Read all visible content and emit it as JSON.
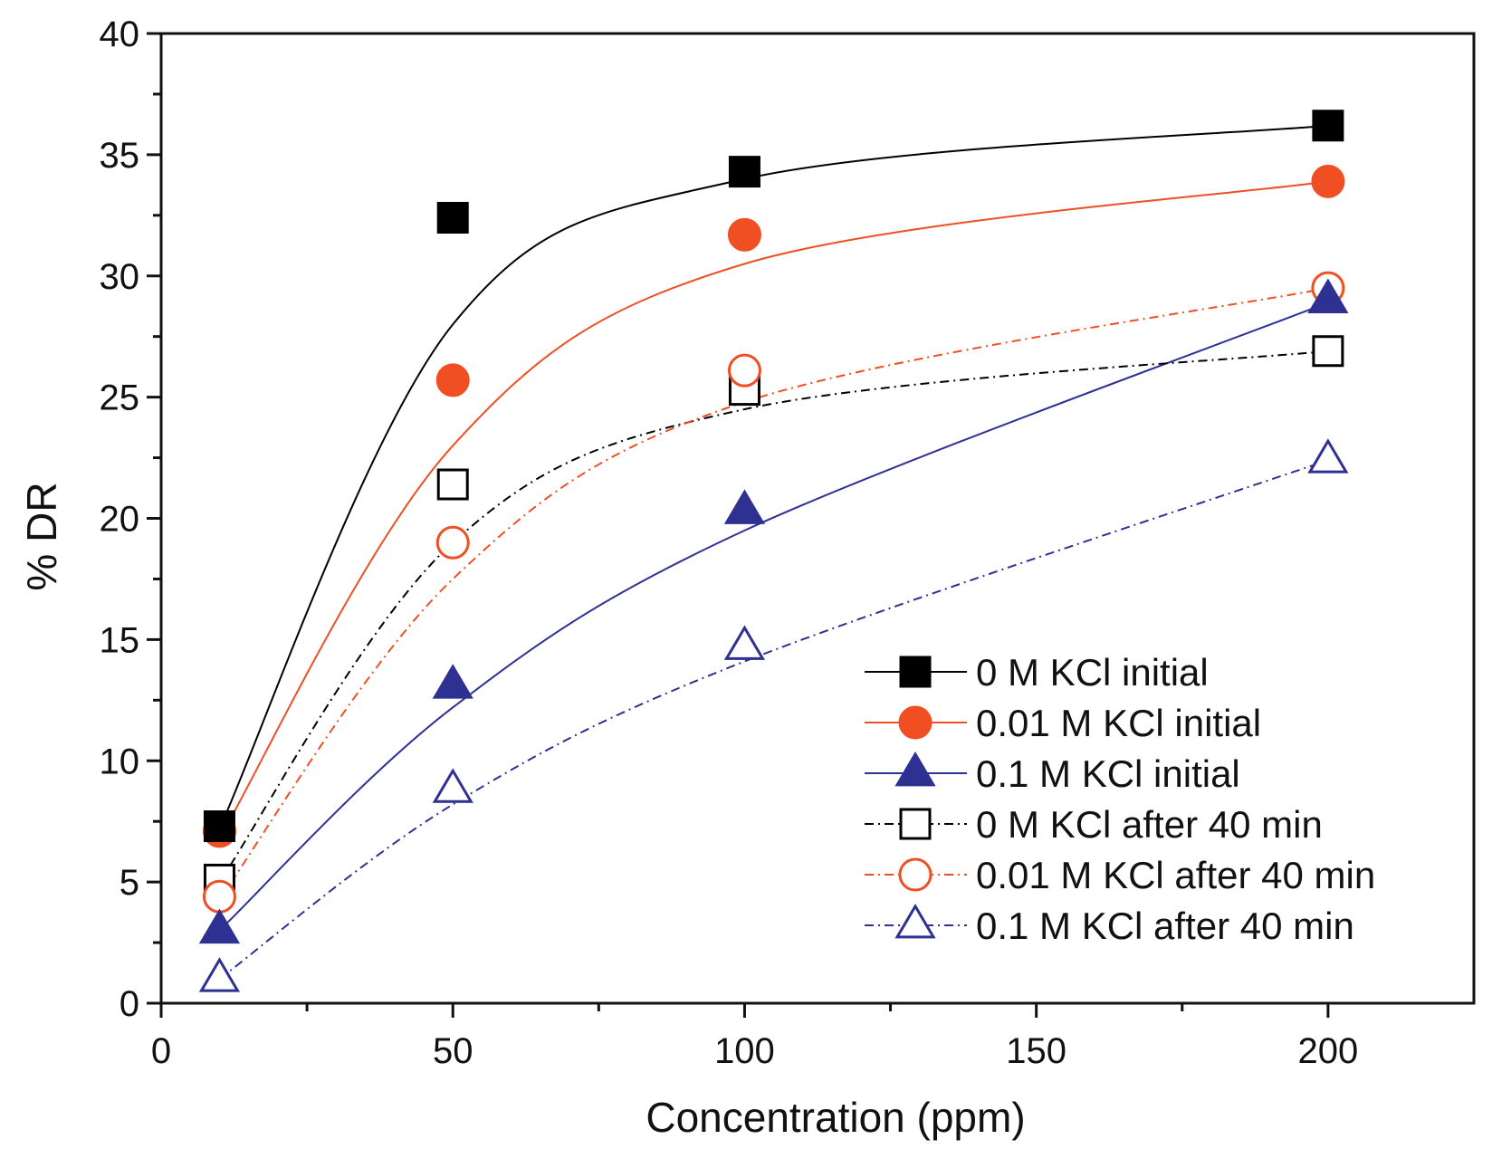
{
  "chart_data": {
    "type": "scatter",
    "title": "",
    "xlabel": "Concentration (ppm)",
    "ylabel": "% DR",
    "xlim": [
      0,
      225
    ],
    "ylim": [
      0,
      40
    ],
    "x_ticks": [
      0,
      50,
      100,
      150,
      200
    ],
    "x_minor_ticks": [
      25,
      75,
      125,
      175
    ],
    "y_ticks": [
      0,
      5,
      10,
      15,
      20,
      25,
      30,
      35,
      40
    ],
    "grid": false,
    "legend_position": "bottom-right",
    "series": [
      {
        "name": "0 M KCl initial",
        "marker": "square",
        "filled": true,
        "color": "#000000",
        "line_style": "solid",
        "x": [
          10,
          50,
          100,
          200
        ],
        "y": [
          7.3,
          32.4,
          34.3,
          36.2
        ],
        "fit_y": [
          7.2,
          28.0,
          34.0,
          36.2
        ]
      },
      {
        "name": "0.01 M KCl initial",
        "marker": "circle",
        "filled": true,
        "color": "#f04e23",
        "line_style": "solid",
        "x": [
          10,
          50,
          100,
          200
        ],
        "y": [
          7.1,
          25.7,
          31.7,
          33.9
        ],
        "fit_y": [
          6.8,
          23.0,
          30.5,
          33.9
        ]
      },
      {
        "name": "0.1 M KCl initial",
        "marker": "triangle",
        "filled": true,
        "color": "#2e3192",
        "line_style": "solid",
        "x": [
          10,
          50,
          100,
          200
        ],
        "y": [
          3.0,
          13.1,
          20.3,
          29.0
        ],
        "fit_y": [
          3.0,
          12.2,
          19.5,
          28.9
        ]
      },
      {
        "name": "0 M KCl after 40 min",
        "marker": "square",
        "filled": false,
        "color": "#000000",
        "line_style": "dashdot",
        "x": [
          10,
          50,
          100,
          200
        ],
        "y": [
          5.1,
          21.4,
          25.3,
          26.9
        ],
        "fit_y": [
          5.0,
          19.0,
          24.5,
          26.9
        ]
      },
      {
        "name": "0.01 M KCl after 40 min",
        "marker": "circle",
        "filled": false,
        "color": "#f04e23",
        "line_style": "dashdot",
        "x": [
          10,
          50,
          100,
          200
        ],
        "y": [
          4.4,
          19.0,
          26.1,
          29.5
        ],
        "fit_y": [
          4.3,
          17.5,
          24.8,
          29.5
        ]
      },
      {
        "name": "0.1 M KCl after 40 min",
        "marker": "triangle",
        "filled": false,
        "color": "#2e3192",
        "line_style": "dashdot",
        "x": [
          10,
          50,
          100,
          200
        ],
        "y": [
          1.0,
          8.8,
          14.7,
          22.4
        ],
        "fit_y": [
          1.0,
          8.2,
          14.1,
          22.4
        ]
      }
    ]
  }
}
